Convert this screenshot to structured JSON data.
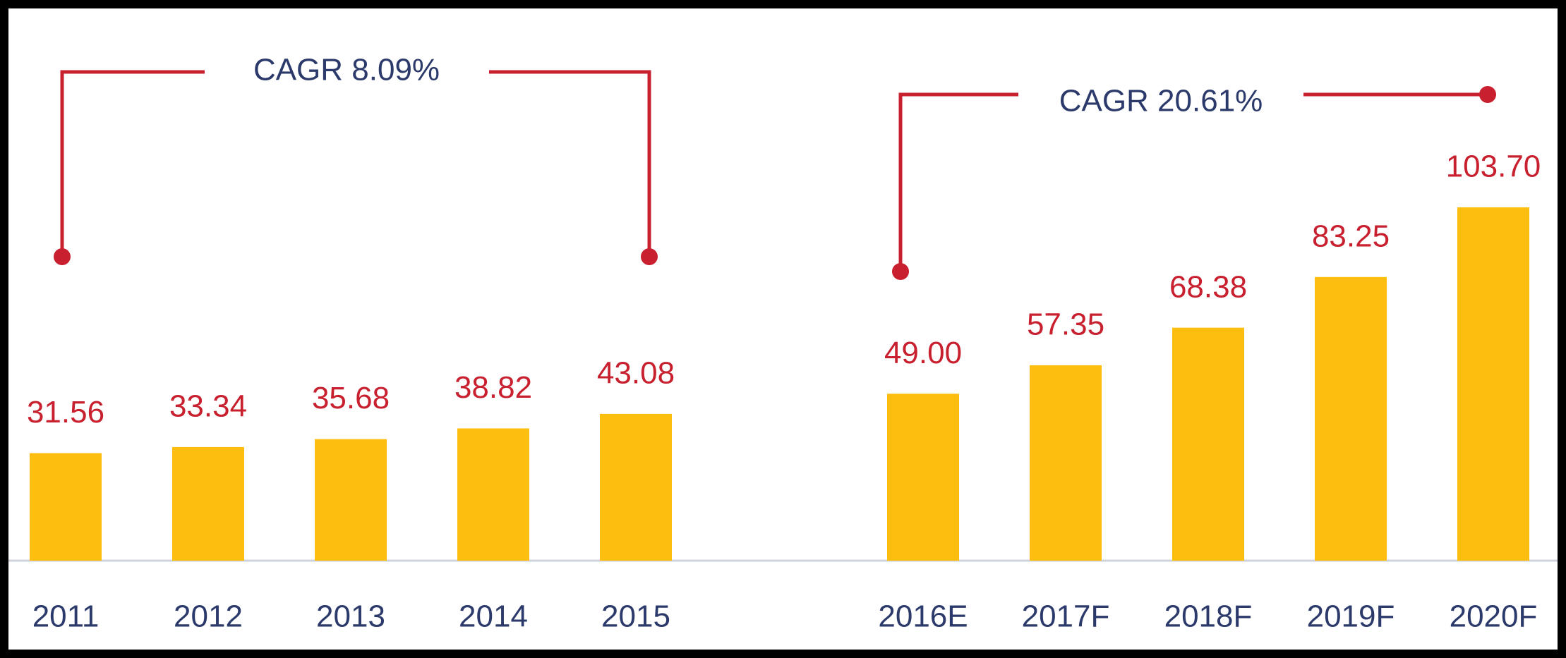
{
  "chart_data": {
    "type": "bar",
    "categories": [
      "2011",
      "2012",
      "2013",
      "2014",
      "2015",
      "2016E",
      "2017F",
      "2018F",
      "2019F",
      "2020F"
    ],
    "values": [
      31.56,
      33.34,
      35.68,
      38.82,
      43.08,
      49.0,
      57.35,
      68.38,
      83.25,
      103.7
    ],
    "value_labels": [
      "31.56",
      "33.34",
      "35.68",
      "38.82",
      "43.08",
      "49.00",
      "57.35",
      "68.38",
      "83.25",
      "103.70"
    ],
    "color": "#FDBE10",
    "annotations": [
      "CAGR 8.09%",
      "CAGR 20.61%"
    ]
  }
}
